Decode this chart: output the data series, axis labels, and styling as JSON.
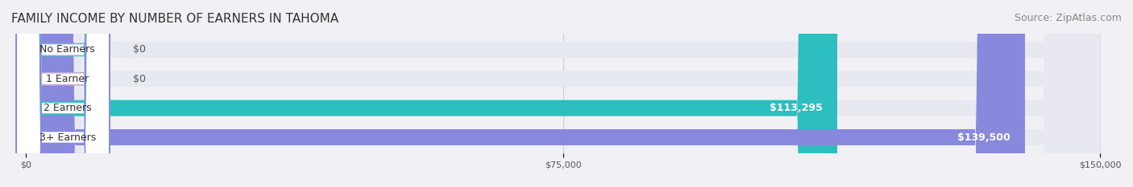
{
  "title": "FAMILY INCOME BY NUMBER OF EARNERS IN TAHOMA",
  "source": "Source: ZipAtlas.com",
  "categories": [
    "No Earners",
    "1 Earner",
    "2 Earners",
    "3+ Earners"
  ],
  "values": [
    0,
    0,
    113295,
    139500
  ],
  "max_value": 150000,
  "bar_colors": [
    "#6bb8d4",
    "#c9a8d4",
    "#2dbfbf",
    "#8888dd"
  ],
  "label_colors": [
    "#6bb8d4",
    "#c9a8d4",
    "#2dbfbf",
    "#8888dd"
  ],
  "value_labels": [
    "$0",
    "$0",
    "$113,295",
    "$139,500"
  ],
  "x_ticks": [
    0,
    75000,
    150000
  ],
  "x_tick_labels": [
    "$0",
    "$75,000",
    "$150,000"
  ],
  "background_color": "#f0f0f5",
  "bar_bg_color": "#e8e8f0",
  "title_fontsize": 11,
  "source_fontsize": 9,
  "label_fontsize": 9,
  "value_fontsize": 9
}
